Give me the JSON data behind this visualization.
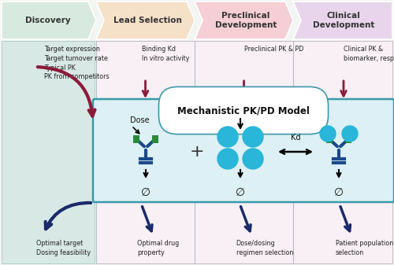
{
  "stages": [
    "Discovery",
    "Lead Selection",
    "Preclinical\nDevelopment",
    "Clinical\nDevelopment"
  ],
  "stage_colors": [
    "#d8eae0",
    "#f5e0c8",
    "#f5cfd5",
    "#e8d5ec"
  ],
  "top_texts": [
    "Target expression\nTarget turnover rate\nTypical PK\nPK from competitors",
    "Binding Kd\nIn vitro activity",
    "Preclinical PK & PD",
    "Clinical PK &\nbiomarker, response"
  ],
  "bottom_texts": [
    "Optimal target\nDosing feasibility",
    "Optimal drug\nproperty",
    "Dose/dosing\nregimen selection",
    "Patient population\nselection"
  ],
  "model_title": "Mechanistic PK/PD Model",
  "model_box_color": "#3a9aaa",
  "model_bg_color": "#ddf0f5",
  "dark_red_arrow": "#8b1a3a",
  "dark_blue_arrow": "#1a2a6b",
  "col_bg_color": "#dde8e8",
  "col_right_bg": "#f0dce8",
  "antibody_stem": "#1a4a8a",
  "antibody_green": "#2a8a3a",
  "drug_color": "#29b6d8",
  "background_color": "#f2f5f2",
  "divider_color": "#b0c0c8"
}
